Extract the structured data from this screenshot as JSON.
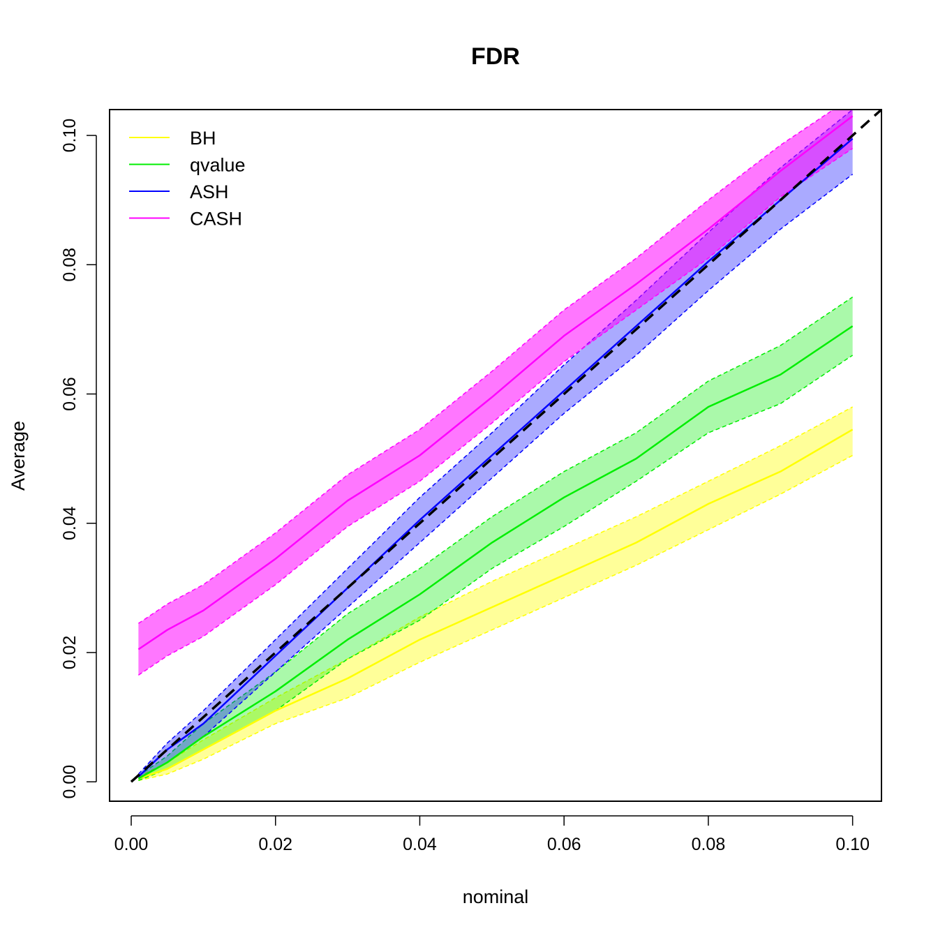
{
  "chart_data": {
    "type": "line",
    "title": "FDR",
    "xlabel": "nominal",
    "ylabel": "Average",
    "xlim": [
      -0.003,
      0.104
    ],
    "ylim": [
      -0.003,
      0.104
    ],
    "x_ticks": [
      "0.00",
      "0.02",
      "0.04",
      "0.06",
      "0.08",
      "0.10"
    ],
    "y_ticks": [
      "0.00",
      "0.02",
      "0.04",
      "0.06",
      "0.08",
      "0.10"
    ],
    "legend_position": "top-left",
    "reference_line": {
      "style": "dashed",
      "color": "#000000",
      "from": [
        0,
        0
      ],
      "to": [
        0.104,
        0.104
      ]
    },
    "series": [
      {
        "name": "BH",
        "color": "#ffff00",
        "fill": "#ffff0066",
        "x": [
          0.001,
          0.005,
          0.01,
          0.02,
          0.03,
          0.04,
          0.05,
          0.06,
          0.07,
          0.08,
          0.09,
          0.1
        ],
        "mean": [
          0.0005,
          0.002,
          0.005,
          0.011,
          0.016,
          0.022,
          0.027,
          0.032,
          0.037,
          0.043,
          0.048,
          0.0545
        ],
        "lower": [
          0.0002,
          0.0012,
          0.0035,
          0.009,
          0.013,
          0.0185,
          0.0235,
          0.0285,
          0.0335,
          0.039,
          0.0445,
          0.0505
        ],
        "upper": [
          0.0008,
          0.003,
          0.0065,
          0.013,
          0.019,
          0.0255,
          0.031,
          0.036,
          0.041,
          0.0465,
          0.052,
          0.058
        ]
      },
      {
        "name": "qvalue",
        "color": "#00ee00",
        "fill": "#00ee0055",
        "x": [
          0.001,
          0.005,
          0.01,
          0.02,
          0.03,
          0.04,
          0.05,
          0.06,
          0.07,
          0.08,
          0.09,
          0.1
        ],
        "mean": [
          0.0005,
          0.003,
          0.007,
          0.014,
          0.022,
          0.029,
          0.037,
          0.044,
          0.05,
          0.058,
          0.063,
          0.0705
        ],
        "lower": [
          0.0002,
          0.002,
          0.005,
          0.011,
          0.019,
          0.025,
          0.033,
          0.0395,
          0.0465,
          0.054,
          0.0585,
          0.066
        ],
        "upper": [
          0.0009,
          0.004,
          0.009,
          0.017,
          0.026,
          0.033,
          0.041,
          0.048,
          0.054,
          0.062,
          0.0675,
          0.075
        ]
      },
      {
        "name": "ASH",
        "color": "#0000ff",
        "fill": "#0000ff55",
        "x": [
          0.001,
          0.005,
          0.01,
          0.02,
          0.03,
          0.04,
          0.05,
          0.06,
          0.07,
          0.08,
          0.09,
          0.1
        ],
        "mean": [
          0.0008,
          0.005,
          0.009,
          0.0195,
          0.03,
          0.0405,
          0.0505,
          0.0605,
          0.0705,
          0.0805,
          0.09,
          0.0995
        ],
        "lower": [
          0.0005,
          0.003,
          0.007,
          0.017,
          0.027,
          0.037,
          0.047,
          0.057,
          0.066,
          0.076,
          0.0855,
          0.094
        ],
        "upper": [
          0.0012,
          0.006,
          0.011,
          0.022,
          0.033,
          0.044,
          0.054,
          0.0645,
          0.0745,
          0.085,
          0.095,
          0.104
        ]
      },
      {
        "name": "CASH",
        "color": "#ff00ff",
        "fill": "#ff00ff88",
        "x": [
          0.001,
          0.005,
          0.01,
          0.02,
          0.03,
          0.04,
          0.05,
          0.06,
          0.07,
          0.08,
          0.09,
          0.1
        ],
        "mean": [
          0.0205,
          0.0235,
          0.0265,
          0.0345,
          0.0435,
          0.0505,
          0.0595,
          0.069,
          0.077,
          0.0855,
          0.0945,
          0.103
        ],
        "lower": [
          0.0165,
          0.0195,
          0.0225,
          0.0305,
          0.0395,
          0.0465,
          0.0555,
          0.065,
          0.073,
          0.081,
          0.0905,
          0.098
        ],
        "upper": [
          0.0245,
          0.0275,
          0.0305,
          0.0385,
          0.0475,
          0.0545,
          0.0635,
          0.073,
          0.081,
          0.09,
          0.0985,
          0.106
        ]
      }
    ]
  }
}
